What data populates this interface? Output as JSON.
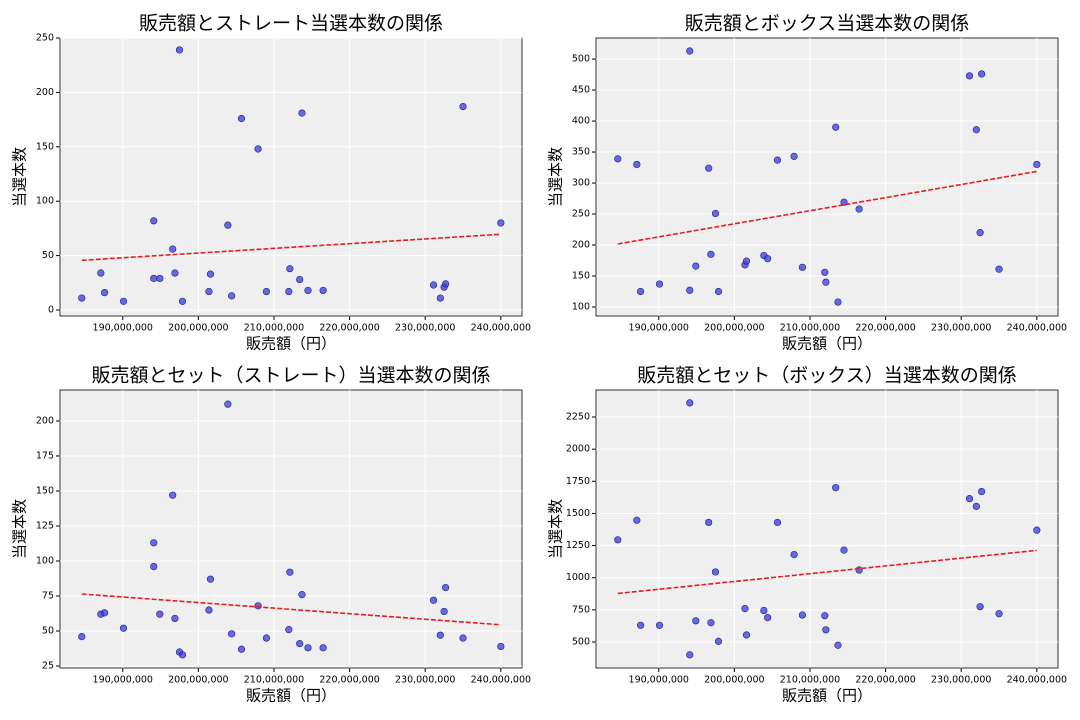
{
  "chart_data": [
    {
      "type": "scatter",
      "title": "販売額とストレート当選本数の関係",
      "x_label": "販売額（円）",
      "y_label": "当選本数",
      "x": [
        184580000,
        187100000,
        187600000,
        190100000,
        194100000,
        194100000,
        194900000,
        196600000,
        196900000,
        197500000,
        197900000,
        201400000,
        201600000,
        203900000,
        204400000,
        205700000,
        207900000,
        209000000,
        211960000,
        212100000,
        213400000,
        213700000,
        214500000,
        216500000,
        231100000,
        232000000,
        232500000,
        232700000,
        235000000,
        240000000
      ],
      "values": [
        11,
        34,
        16,
        8,
        82,
        29,
        29,
        56,
        34,
        239,
        8,
        17,
        33,
        78,
        13,
        176,
        148,
        17,
        17,
        38,
        28,
        181,
        18,
        18,
        23,
        11,
        21,
        24,
        187,
        80
      ],
      "color": "#3a3ae0",
      "trend_color": "#e02020",
      "trendline": true,
      "grid": true,
      "xlim": [
        181700000,
        242800000
      ],
      "ylim": [
        -5.5,
        250
      ],
      "xticks": [
        {
          "value": 190000000,
          "label": "190,000,000"
        },
        {
          "value": 200000000,
          "label": "200,000,000"
        },
        {
          "value": 210000000,
          "label": "210,000,000"
        },
        {
          "value": 220000000,
          "label": "220,000,000"
        },
        {
          "value": 230000000,
          "label": "230,000,000"
        },
        {
          "value": 240000000,
          "label": "240,000,000"
        }
      ],
      "yticks": [
        0,
        50,
        100,
        150,
        200,
        250
      ]
    },
    {
      "type": "scatter",
      "title": "販売額とボックス当選本数の関係",
      "x_label": "販売額（円）",
      "y_label": "当選本数",
      "x": [
        184580000,
        187100000,
        187600000,
        190100000,
        194100000,
        194100000,
        194900000,
        196600000,
        196900000,
        197500000,
        197900000,
        201400000,
        201600000,
        203900000,
        204400000,
        205700000,
        207900000,
        209000000,
        211960000,
        212100000,
        213400000,
        213700000,
        214500000,
        216500000,
        231100000,
        232000000,
        232500000,
        232700000,
        235000000,
        240000000
      ],
      "values": [
        339,
        330,
        125,
        137,
        513,
        127,
        166,
        324,
        185,
        251,
        125,
        168,
        174,
        183,
        178,
        337,
        343,
        164,
        156,
        140,
        390,
        108,
        269,
        258,
        473,
        386,
        220,
        476,
        161,
        330
      ],
      "color": "#3a3ae0",
      "trend_color": "#e02020",
      "trendline": true,
      "grid": true,
      "xlim": [
        181700000,
        242800000
      ],
      "ylim": [
        85.5,
        534
      ],
      "xticks": [
        {
          "value": 190000000,
          "label": "190,000,000"
        },
        {
          "value": 200000000,
          "label": "200,000,000"
        },
        {
          "value": 210000000,
          "label": "210,000,000"
        },
        {
          "value": 220000000,
          "label": "220,000,000"
        },
        {
          "value": 230000000,
          "label": "230,000,000"
        },
        {
          "value": 240000000,
          "label": "240,000,000"
        }
      ],
      "yticks": [
        100,
        150,
        200,
        250,
        300,
        350,
        400,
        450,
        500
      ]
    },
    {
      "type": "scatter",
      "title": "販売額とセット（ストレート）当選本数の関係",
      "x_label": "販売額（円）",
      "y_label": "当選本数",
      "x": [
        184580000,
        187100000,
        187600000,
        190100000,
        194100000,
        194100000,
        194900000,
        196600000,
        196900000,
        197500000,
        197900000,
        201400000,
        201600000,
        203900000,
        204400000,
        205700000,
        207900000,
        209000000,
        211960000,
        212100000,
        213400000,
        213700000,
        214500000,
        216500000,
        231100000,
        232000000,
        232500000,
        232700000,
        235000000,
        240000000
      ],
      "values": [
        46,
        62,
        63,
        52,
        113,
        96,
        62,
        147,
        59,
        35,
        33,
        65,
        87,
        212,
        48,
        37,
        68,
        45,
        51,
        92,
        41,
        76,
        38,
        38,
        72,
        47,
        64,
        81,
        45,
        39
      ],
      "color": "#3a3ae0",
      "trend_color": "#e02020",
      "trendline": true,
      "grid": true,
      "xlim": [
        181700000,
        242800000
      ],
      "ylim": [
        23.6,
        222.1
      ],
      "xticks": [
        {
          "value": 190000000,
          "label": "190,000,000"
        },
        {
          "value": 200000000,
          "label": "200,000,000"
        },
        {
          "value": 210000000,
          "label": "210,000,000"
        },
        {
          "value": 220000000,
          "label": "220,000,000"
        },
        {
          "value": 230000000,
          "label": "230,000,000"
        },
        {
          "value": 240000000,
          "label": "240,000,000"
        }
      ],
      "yticks": [
        25,
        50,
        75,
        100,
        125,
        150,
        175,
        200
      ]
    },
    {
      "type": "scatter",
      "title": "販売額とセット（ボックス）当選本数の関係",
      "x_label": "販売額（円）",
      "y_label": "当選本数",
      "x": [
        184580000,
        187100000,
        187600000,
        190100000,
        194100000,
        194100000,
        194900000,
        196600000,
        196900000,
        197500000,
        197900000,
        201400000,
        201600000,
        203900000,
        204400000,
        205700000,
        207900000,
        209000000,
        211960000,
        212100000,
        213400000,
        213700000,
        214500000,
        216500000,
        231100000,
        232000000,
        232500000,
        232700000,
        235000000,
        240000000
      ],
      "values": [
        1295,
        1447,
        630,
        630,
        2360,
        400,
        665,
        1430,
        650,
        1045,
        505,
        760,
        555,
        745,
        690,
        1430,
        1180,
        710,
        705,
        595,
        1700,
        475,
        1215,
        1060,
        1615,
        1555,
        775,
        1670,
        720,
        1370
      ],
      "color": "#3a3ae0",
      "trend_color": "#e02020",
      "trendline": true,
      "grid": true,
      "xlim": [
        181700000,
        242800000
      ],
      "ylim": [
        298,
        2460
      ],
      "xticks": [
        {
          "value": 190000000,
          "label": "190,000,000"
        },
        {
          "value": 200000000,
          "label": "200,000,000"
        },
        {
          "value": 210000000,
          "label": "210,000,000"
        },
        {
          "value": 220000000,
          "label": "220,000,000"
        },
        {
          "value": 230000000,
          "label": "230,000,000"
        },
        {
          "value": 240000000,
          "label": "240,000,000"
        }
      ],
      "yticks": [
        500,
        750,
        1000,
        1250,
        1500,
        1750,
        2000,
        2250
      ]
    }
  ]
}
